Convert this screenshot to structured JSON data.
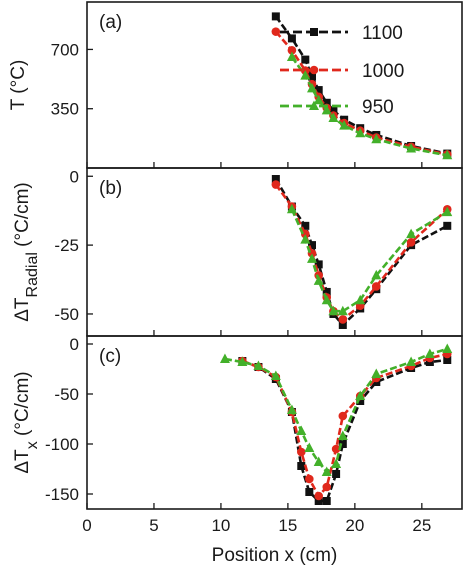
{
  "chart_data": [
    {
      "type": "line",
      "panel_label": "(a)",
      "ylabel": "T (°C)",
      "xlim": [
        0,
        28
      ],
      "ylim": [
        0,
        980
      ],
      "yticks": [
        350,
        700
      ],
      "legend": {
        "placement": "top-right",
        "entries": [
          "1100",
          "1000",
          "950"
        ]
      },
      "series": [
        {
          "name": "1100",
          "color": "#111111",
          "marker": "square",
          "points": [
            [
              14.1,
              895
            ],
            [
              15.3,
              765
            ],
            [
              16.3,
              640
            ],
            [
              16.8,
              540
            ],
            [
              17.3,
              460
            ],
            [
              17.9,
              385
            ],
            [
              18.4,
              340
            ],
            [
              19.2,
              285
            ],
            [
              20.4,
              235
            ],
            [
              21.6,
              195
            ],
            [
              24.2,
              130
            ],
            [
              26.9,
              85
            ]
          ]
        },
        {
          "name": "1000",
          "color": "#e0281c",
          "marker": "circle",
          "points": [
            [
              14.1,
              805
            ],
            [
              15.3,
              695
            ],
            [
              16.3,
              575
            ],
            [
              16.8,
              495
            ],
            [
              17.3,
              420
            ],
            [
              17.9,
              355
            ],
            [
              18.4,
              310
            ],
            [
              19.2,
              265
            ],
            [
              20.4,
              220
            ],
            [
              21.6,
              180
            ],
            [
              24.2,
              125
            ],
            [
              26.9,
              80
            ]
          ]
        },
        {
          "name": "950",
          "color": "#43b02a",
          "marker": "triangle",
          "points": [
            [
              15.3,
              655
            ],
            [
              16.3,
              545
            ],
            [
              16.8,
              470
            ],
            [
              17.3,
              400
            ],
            [
              17.9,
              340
            ],
            [
              18.4,
              295
            ],
            [
              19.2,
              250
            ],
            [
              20.4,
              205
            ],
            [
              21.6,
              170
            ],
            [
              24.2,
              115
            ],
            [
              26.9,
              75
            ]
          ]
        }
      ]
    },
    {
      "type": "line",
      "panel_label": "(b)",
      "ylabel": "ΔT",
      "ylabel_subscript": "Radial",
      "ylabel_suffix": " (°C/cm)",
      "xlim": [
        0,
        28
      ],
      "ylim": [
        -58,
        3
      ],
      "yticks": [
        0,
        -25,
        -50
      ],
      "series": [
        {
          "name": "1100",
          "color": "#111111",
          "marker": "square",
          "points": [
            [
              14.1,
              -1
            ],
            [
              15.3,
              -11
            ],
            [
              16.3,
              -18
            ],
            [
              16.8,
              -25
            ],
            [
              17.3,
              -32
            ],
            [
              17.9,
              -42
            ],
            [
              18.4,
              -50
            ],
            [
              19.1,
              -54
            ],
            [
              20.4,
              -48
            ],
            [
              21.6,
              -41
            ],
            [
              24.2,
              -25
            ],
            [
              26.9,
              -18
            ]
          ]
        },
        {
          "name": "1000",
          "color": "#e0281c",
          "marker": "circle",
          "points": [
            [
              14.1,
              -3
            ],
            [
              15.3,
              -11
            ],
            [
              16.3,
              -21
            ],
            [
              16.8,
              -28
            ],
            [
              17.3,
              -36
            ],
            [
              17.9,
              -44
            ],
            [
              18.4,
              -49
            ],
            [
              19.1,
              -52
            ],
            [
              20.4,
              -47
            ],
            [
              21.6,
              -40
            ],
            [
              24.2,
              -24
            ],
            [
              26.9,
              -12
            ]
          ]
        },
        {
          "name": "950",
          "color": "#43b02a",
          "marker": "triangle",
          "points": [
            [
              15.3,
              -12
            ],
            [
              16.3,
              -23
            ],
            [
              16.8,
              -30
            ],
            [
              17.3,
              -38
            ],
            [
              17.9,
              -45
            ],
            [
              18.4,
              -49
            ],
            [
              19.1,
              -49
            ],
            [
              20.4,
              -45
            ],
            [
              21.6,
              -36
            ],
            [
              24.2,
              -21
            ],
            [
              26.9,
              -13
            ]
          ]
        }
      ]
    },
    {
      "type": "line",
      "panel_label": "(c)",
      "ylabel": "ΔT",
      "ylabel_subscript": "x",
      "ylabel_suffix": " (°C/cm)",
      "xlabel": "Position x (cm)",
      "xlim": [
        0,
        28
      ],
      "ylim": [
        -165,
        8
      ],
      "yticks": [
        0,
        -50,
        -100,
        -150
      ],
      "xticks": [
        0,
        5,
        10,
        15,
        20,
        25
      ],
      "series": [
        {
          "name": "1100",
          "color": "#111111",
          "marker": "square",
          "points": [
            [
              11.6,
              -17
            ],
            [
              12.8,
              -23
            ],
            [
              14.1,
              -35
            ],
            [
              15.3,
              -68
            ],
            [
              16.0,
              -122
            ],
            [
              16.6,
              -148
            ],
            [
              17.3,
              -157
            ],
            [
              17.9,
              -157
            ],
            [
              18.6,
              -130
            ],
            [
              19.1,
              -100
            ],
            [
              20.4,
              -57
            ],
            [
              21.6,
              -38
            ],
            [
              24.2,
              -24
            ],
            [
              25.6,
              -18
            ],
            [
              26.9,
              -16
            ]
          ]
        },
        {
          "name": "1000",
          "color": "#e0281c",
          "marker": "circle",
          "points": [
            [
              11.6,
              -17
            ],
            [
              12.8,
              -23
            ],
            [
              14.1,
              -33
            ],
            [
              15.3,
              -68
            ],
            [
              16.0,
              -108
            ],
            [
              16.6,
              -135
            ],
            [
              17.3,
              -152
            ],
            [
              17.9,
              -143
            ],
            [
              18.6,
              -105
            ],
            [
              19.1,
              -72
            ],
            [
              20.4,
              -52
            ],
            [
              21.6,
              -34
            ],
            [
              24.2,
              -22
            ],
            [
              25.6,
              -14
            ],
            [
              26.9,
              -10
            ]
          ]
        },
        {
          "name": "950",
          "color": "#43b02a",
          "marker": "triangle",
          "points": [
            [
              10.3,
              -15
            ],
            [
              11.6,
              -18
            ],
            [
              12.8,
              -22
            ],
            [
              14.1,
              -32
            ],
            [
              15.3,
              -66
            ],
            [
              16.0,
              -87
            ],
            [
              16.6,
              -104
            ],
            [
              17.3,
              -118
            ],
            [
              17.9,
              -128
            ],
            [
              18.6,
              -120
            ],
            [
              19.1,
              -92
            ],
            [
              20.4,
              -52
            ],
            [
              21.6,
              -30
            ],
            [
              24.2,
              -18
            ],
            [
              25.6,
              -10
            ],
            [
              26.9,
              -5
            ]
          ]
        }
      ]
    }
  ]
}
